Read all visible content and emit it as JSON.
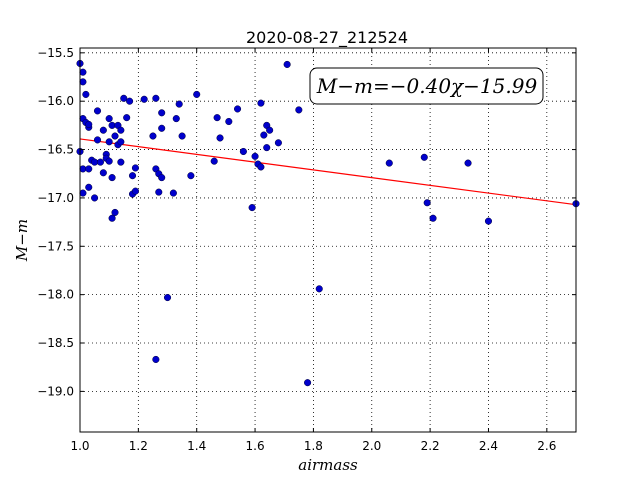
{
  "chart_data": {
    "type": "scatter",
    "title": "2020-08-27_212524",
    "xlabel": "airmass",
    "ylabel": "M−m",
    "xlim": [
      1.0,
      2.7
    ],
    "ylim": [
      -15.45,
      -19.42
    ],
    "y_axis_inverted": true,
    "grid": true,
    "grid_style": "dotted",
    "x_ticks": [
      1.0,
      1.2,
      1.4,
      1.6,
      1.8,
      2.0,
      2.2,
      2.4,
      2.6
    ],
    "x_tick_labels": [
      "1.0",
      "1.2",
      "1.4",
      "1.6",
      "1.8",
      "2.0",
      "2.2",
      "2.4",
      "2.6"
    ],
    "y_ticks": [
      -15.5,
      -16.0,
      -16.5,
      -17.0,
      -17.5,
      -18.0,
      -18.5,
      -19.0
    ],
    "y_tick_labels": [
      "−15.5",
      "−16.0",
      "−16.5",
      "−17.0",
      "−17.5",
      "−18.0",
      "−18.5",
      "−19.0"
    ],
    "annotation": "M−m=−0.40χ−15.99",
    "fit": {
      "slope": -0.4,
      "intercept": -15.99,
      "color": "#ff0000"
    },
    "point_color": "#0000cc",
    "points": [
      [
        1.0,
        -15.61
      ],
      [
        1.01,
        -15.7
      ],
      [
        1.01,
        -15.8
      ],
      [
        1.02,
        -15.93
      ],
      [
        1.01,
        -16.18
      ],
      [
        1.02,
        -16.22
      ],
      [
        1.03,
        -16.27
      ],
      [
        1.03,
        -16.24
      ],
      [
        1.0,
        -16.52
      ],
      [
        1.01,
        -16.7
      ],
      [
        1.01,
        -16.95
      ],
      [
        1.03,
        -16.7
      ],
      [
        1.03,
        -16.89
      ],
      [
        1.04,
        -16.61
      ],
      [
        1.05,
        -16.63
      ],
      [
        1.05,
        -17.0
      ],
      [
        1.06,
        -16.1
      ],
      [
        1.06,
        -16.4
      ],
      [
        1.07,
        -16.63
      ],
      [
        1.08,
        -16.3
      ],
      [
        1.08,
        -16.74
      ],
      [
        1.09,
        -16.55
      ],
      [
        1.09,
        -16.59
      ],
      [
        1.1,
        -16.62
      ],
      [
        1.1,
        -16.42
      ],
      [
        1.1,
        -16.18
      ],
      [
        1.11,
        -16.25
      ],
      [
        1.11,
        -17.21
      ],
      [
        1.11,
        -16.79
      ],
      [
        1.12,
        -17.15
      ],
      [
        1.12,
        -16.36
      ],
      [
        1.13,
        -16.45
      ],
      [
        1.13,
        -16.25
      ],
      [
        1.14,
        -16.3
      ],
      [
        1.14,
        -16.42
      ],
      [
        1.14,
        -16.63
      ],
      [
        1.15,
        -15.97
      ],
      [
        1.16,
        -16.17
      ],
      [
        1.17,
        -16.0
      ],
      [
        1.18,
        -16.77
      ],
      [
        1.18,
        -16.96
      ],
      [
        1.19,
        -16.93
      ],
      [
        1.19,
        -16.69
      ],
      [
        1.22,
        -15.98
      ],
      [
        1.25,
        -16.36
      ],
      [
        1.26,
        -15.97
      ],
      [
        1.26,
        -16.7
      ],
      [
        1.27,
        -16.75
      ],
      [
        1.27,
        -16.94
      ],
      [
        1.28,
        -16.12
      ],
      [
        1.28,
        -16.28
      ],
      [
        1.28,
        -16.79
      ],
      [
        1.3,
        -18.03
      ],
      [
        1.26,
        -18.67
      ],
      [
        1.32,
        -16.95
      ],
      [
        1.33,
        -16.18
      ],
      [
        1.34,
        -16.03
      ],
      [
        1.35,
        -16.36
      ],
      [
        1.38,
        -16.77
      ],
      [
        1.4,
        -15.93
      ],
      [
        1.46,
        -16.62
      ],
      [
        1.47,
        -16.17
      ],
      [
        1.48,
        -16.38
      ],
      [
        1.51,
        -16.21
      ],
      [
        1.54,
        -16.08
      ],
      [
        1.56,
        -16.52
      ],
      [
        1.59,
        -17.1
      ],
      [
        1.6,
        -16.57
      ],
      [
        1.61,
        -16.65
      ],
      [
        1.62,
        -16.68
      ],
      [
        1.62,
        -16.02
      ],
      [
        1.63,
        -16.35
      ],
      [
        1.64,
        -16.48
      ],
      [
        1.64,
        -16.25
      ],
      [
        1.65,
        -16.3
      ],
      [
        1.68,
        -16.43
      ],
      [
        1.71,
        -15.62
      ],
      [
        1.75,
        -16.09
      ],
      [
        1.78,
        -18.91
      ],
      [
        1.82,
        -17.94
      ],
      [
        2.06,
        -16.64
      ],
      [
        2.18,
        -16.58
      ],
      [
        2.19,
        -17.05
      ],
      [
        2.21,
        -17.21
      ],
      [
        2.33,
        -16.64
      ],
      [
        2.4,
        -17.24
      ],
      [
        2.7,
        -17.06
      ]
    ]
  }
}
